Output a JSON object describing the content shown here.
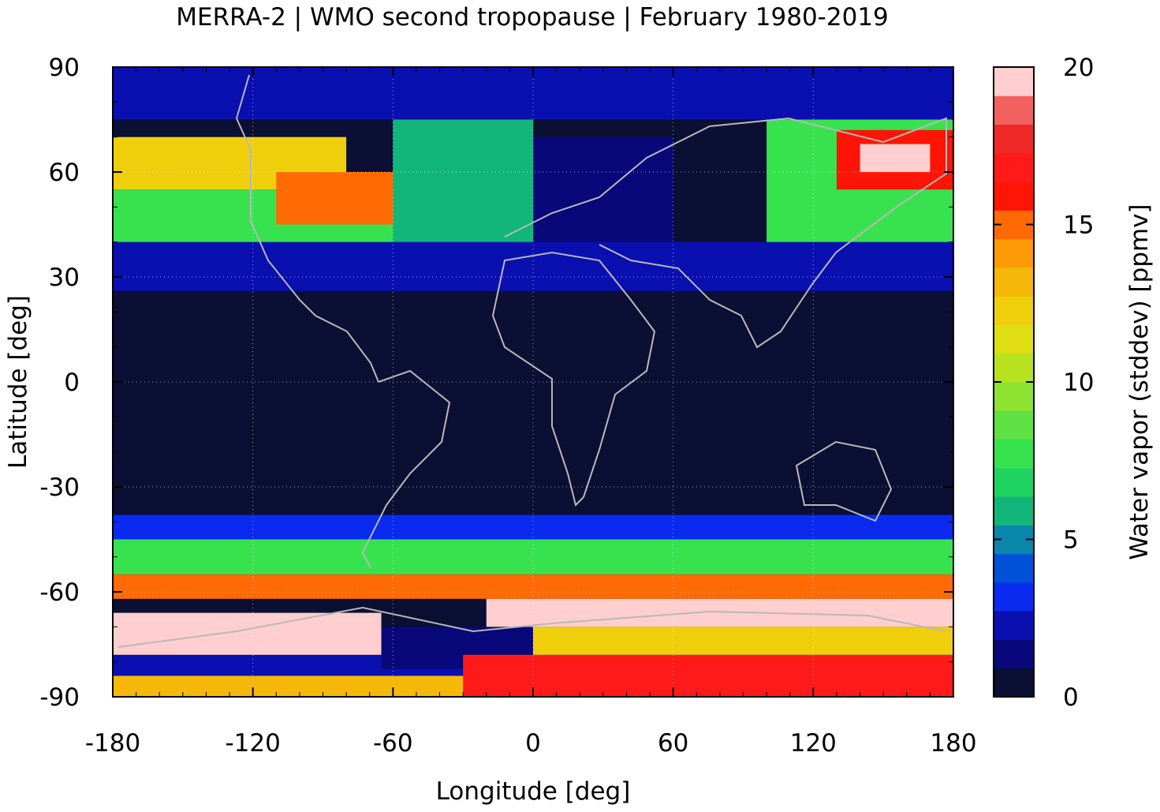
{
  "chart_data": {
    "type": "heatmap",
    "title": "MERRA-2 | WMO second tropopause | February 1980-2019",
    "xlabel": "Longitude [deg]",
    "ylabel": "Latitude [deg]",
    "xlim": [
      -180,
      180
    ],
    "ylim": [
      -90,
      90
    ],
    "x_ticks": [
      "-180",
      "-120",
      "-60",
      "0",
      "60",
      "120",
      "180"
    ],
    "y_ticks": [
      "-90",
      "-60",
      "-30",
      "0",
      "30",
      "60",
      "90"
    ],
    "grid": "dotted",
    "colorbar": {
      "label": "Water vapor (stddev) [ppmv]",
      "range": [
        0,
        20
      ],
      "ticks": [
        "0",
        "5",
        "10",
        "15",
        "20"
      ],
      "levels": [
        "#0a0f33",
        "#08087a",
        "#0a0fb0",
        "#0a2af0",
        "#0050d8",
        "#0a86aa",
        "#12b57a",
        "#1ed25f",
        "#38e24f",
        "#5ee142",
        "#8ee230",
        "#b8e220",
        "#dede12",
        "#efcf0c",
        "#f6b808",
        "#fb9a05",
        "#ff6a05",
        "#ff1405",
        "#ff1a1a",
        "#f02828",
        "#f26060",
        "#ffcece"
      ]
    },
    "bands": [
      {
        "lat": [
          -90,
          -84
        ],
        "lon": [
          -180,
          180
        ],
        "value": 13
      },
      {
        "lat": [
          -84,
          -78
        ],
        "lon": [
          -180,
          180
        ],
        "value": 2
      },
      {
        "lat": [
          -78,
          -66
        ],
        "lon": [
          -180,
          -65
        ],
        "value": 20
      },
      {
        "lat": [
          -82,
          -70
        ],
        "lon": [
          -65,
          0
        ],
        "value": 1
      },
      {
        "lat": [
          -90,
          -78
        ],
        "lon": [
          -30,
          180
        ],
        "value": 17
      },
      {
        "lat": [
          -78,
          -70
        ],
        "lon": [
          0,
          180
        ],
        "value": 12
      },
      {
        "lat": [
          -70,
          -62
        ],
        "lon": [
          -20,
          180
        ],
        "value": 20
      },
      {
        "lat": [
          -62,
          -55
        ],
        "lon": [
          -180,
          180
        ],
        "value": 15
      },
      {
        "lat": [
          -55,
          -45
        ],
        "lon": [
          -180,
          180
        ],
        "value": 8
      },
      {
        "lat": [
          -45,
          -38
        ],
        "lon": [
          -180,
          180
        ],
        "value": 3
      },
      {
        "lat": [
          -38,
          26
        ],
        "lon": [
          -180,
          180
        ],
        "value": 0
      },
      {
        "lat": [
          26,
          40
        ],
        "lon": [
          -180,
          180
        ],
        "value": 2
      },
      {
        "lat": [
          40,
          55
        ],
        "lon": [
          -180,
          -60
        ],
        "value": 8
      },
      {
        "lat": [
          55,
          70
        ],
        "lon": [
          -180,
          -80
        ],
        "value": 12
      },
      {
        "lat": [
          45,
          60
        ],
        "lon": [
          -110,
          -60
        ],
        "value": 15
      },
      {
        "lat": [
          40,
          80
        ],
        "lon": [
          -60,
          0
        ],
        "value": 6
      },
      {
        "lat": [
          40,
          70
        ],
        "lon": [
          0,
          60
        ],
        "value": 1
      },
      {
        "lat": [
          40,
          75
        ],
        "lon": [
          100,
          180
        ],
        "value": 8
      },
      {
        "lat": [
          55,
          72
        ],
        "lon": [
          130,
          180
        ],
        "value": 16
      },
      {
        "lat": [
          60,
          68
        ],
        "lon": [
          140,
          170
        ],
        "value": 20
      },
      {
        "lat": [
          75,
          90
        ],
        "lon": [
          -180,
          180
        ],
        "value": 2
      }
    ]
  }
}
